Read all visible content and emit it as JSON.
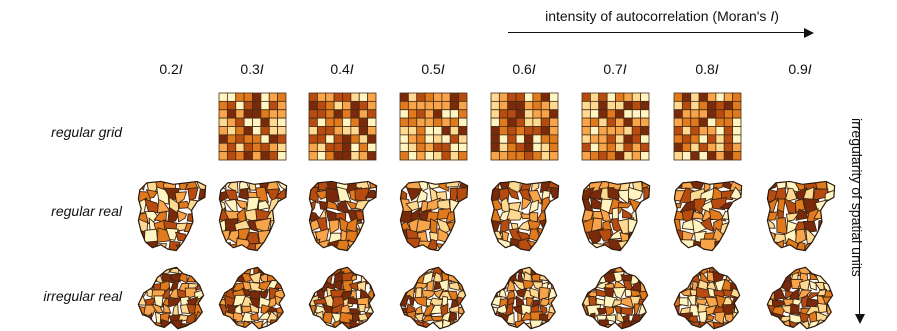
{
  "top_axis_label_main": "intensity of autocorrelation (Moran's ",
  "top_axis_label_symbol": "I",
  "top_axis_label_end": ")",
  "side_axis_label": "irregularity of spatial units",
  "columns": [
    "0.2",
    "0.3",
    "0.4",
    "0.5",
    "0.6",
    "0.7",
    "0.8",
    "0.9"
  ],
  "column_symbol": "I",
  "rows": [
    "regular grid",
    "regular real",
    "irregular real"
  ],
  "palette": [
    "#fff5c2",
    "#fdd992",
    "#f7a44a",
    "#e07a1d",
    "#b84c10",
    "#7a2a0b"
  ],
  "grid_row_present": [
    false,
    true,
    true,
    true,
    true,
    true,
    true,
    false
  ]
}
